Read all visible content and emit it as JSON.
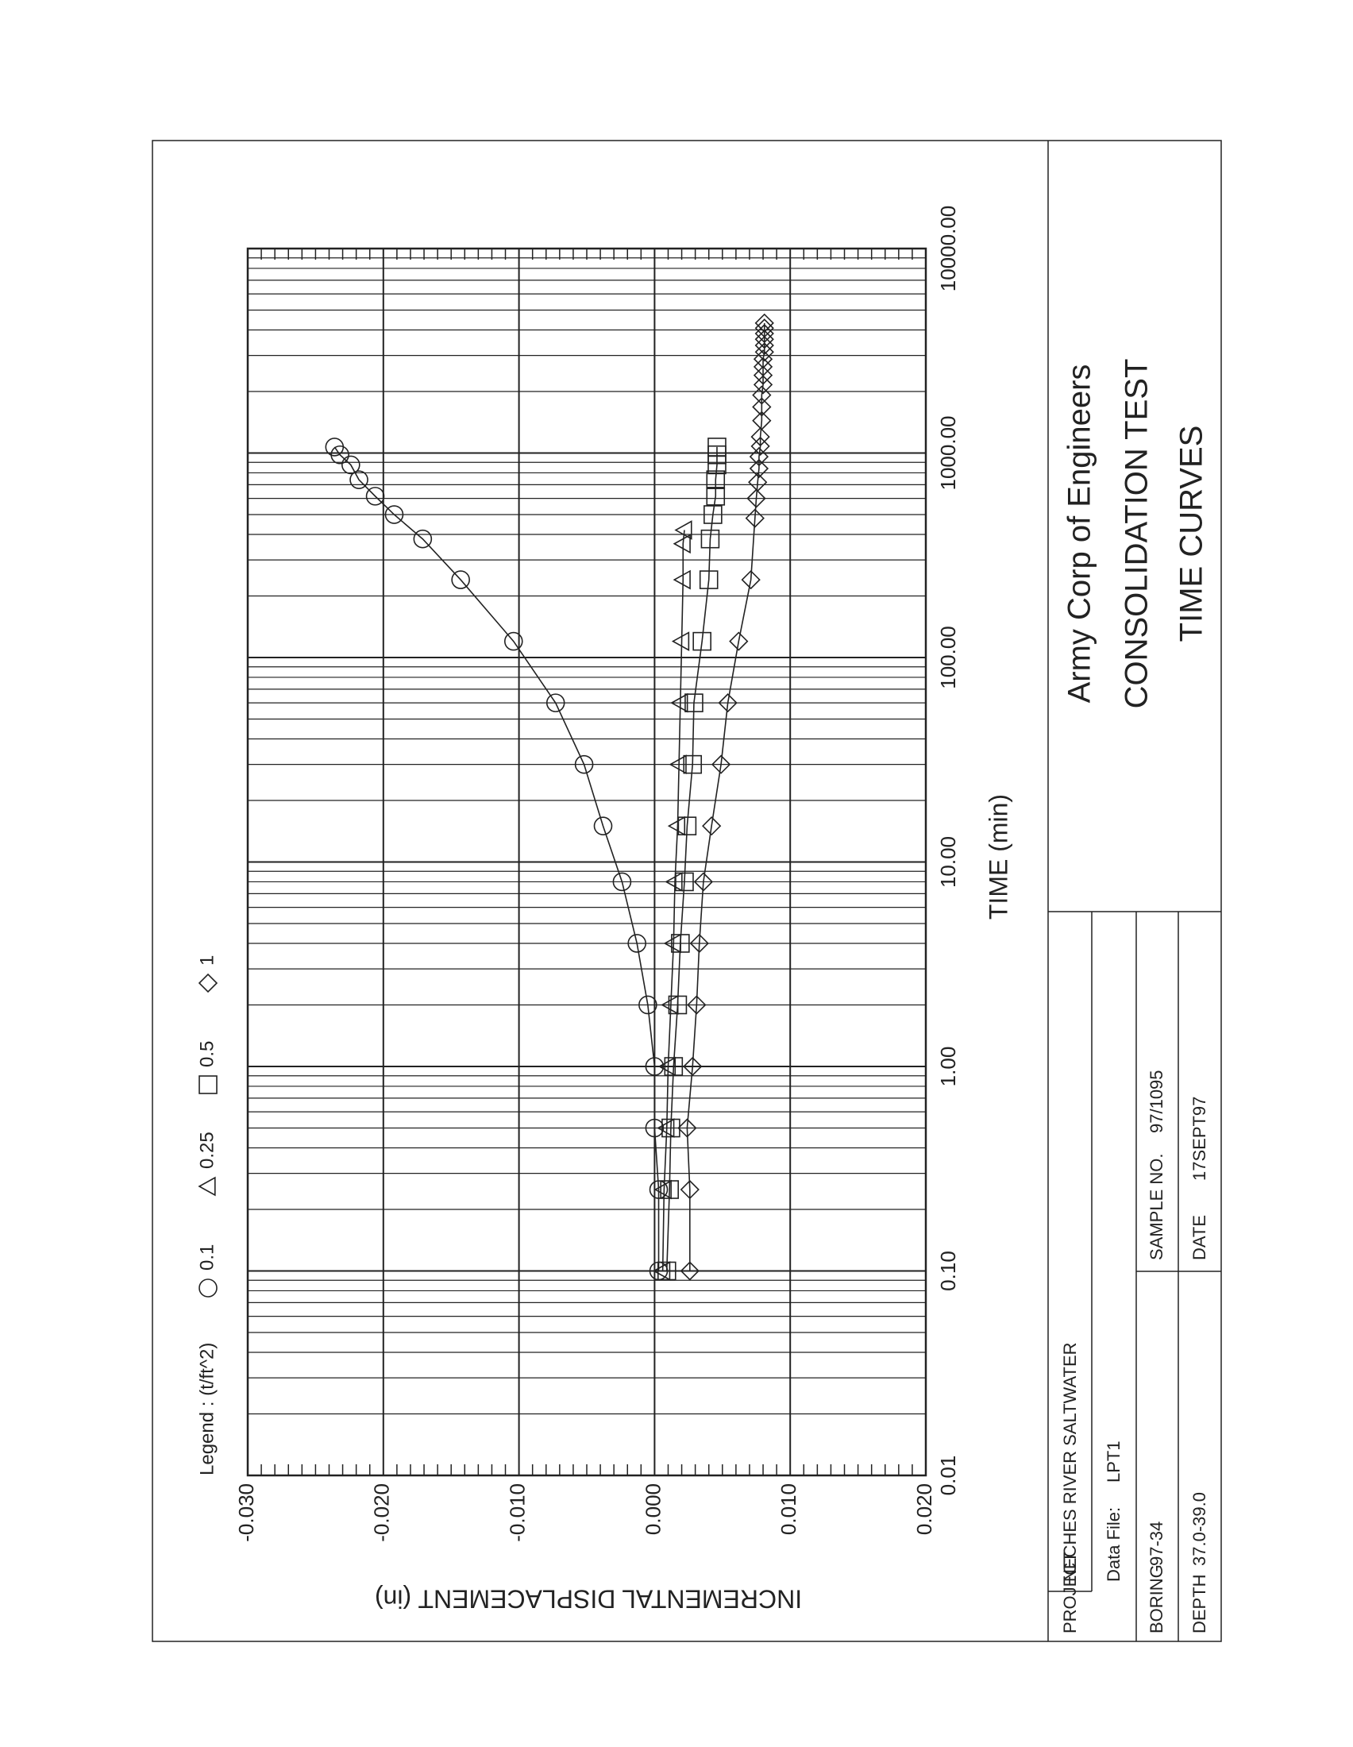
{
  "chart_data": {
    "type": "line",
    "xlabel": "TIME (min)",
    "ylabel": "INCREMENTAL DISPLACEMENT (in)",
    "legend_title": "Legend : (t/ft^2)",
    "xscale": "log",
    "xlim": [
      0.01,
      10000
    ],
    "xticks": [
      {
        "value": 0.01,
        "label": "0.01"
      },
      {
        "value": 0.1,
        "label": "0.10"
      },
      {
        "value": 1,
        "label": "1.00"
      },
      {
        "value": 10,
        "label": "10.00"
      },
      {
        "value": 100,
        "label": "100.00"
      },
      {
        "value": 1000,
        "label": "1000.00"
      },
      {
        "value": 10000,
        "label": "10000.00"
      }
    ],
    "ylim": [
      0.02,
      -0.03
    ],
    "yticks": [
      {
        "value": -0.03,
        "label": "-0.030"
      },
      {
        "value": -0.02,
        "label": "-0.020"
      },
      {
        "value": -0.01,
        "label": "-0.010"
      },
      {
        "value": 0,
        "label": "0.000"
      },
      {
        "value": 0.01,
        "label": "0.010"
      },
      {
        "value": 0.02,
        "label": "0.020"
      }
    ],
    "grid": true,
    "series": [
      {
        "name": "0.1",
        "marker": "circle",
        "color": "#222222",
        "x": [
          0.1,
          0.25,
          0.5,
          1,
          2,
          4,
          8,
          15,
          30,
          60,
          120,
          240,
          380,
          500,
          615,
          740,
          875,
          980,
          1070
        ],
        "values": [
          0.0003,
          0.0003,
          0,
          0,
          -0.0005,
          -0.0013,
          -0.0024,
          -0.0038,
          -0.0052,
          -0.0073,
          -0.0104,
          -0.0143,
          -0.0171,
          -0.0192,
          -0.0206,
          -0.0218,
          -0.0224,
          -0.0232,
          -0.0236
        ]
      },
      {
        "name": "0.25",
        "marker": "triangle",
        "color": "#222222",
        "x": [
          0.1,
          0.25,
          0.5,
          1,
          2,
          4,
          8,
          15,
          30,
          60,
          120,
          240,
          360,
          420
        ],
        "values": [
          0.0006,
          0.0007,
          0.0009,
          0.001,
          0.0012,
          0.0014,
          0.0015,
          0.0017,
          0.0018,
          0.0019,
          0.002,
          0.0021,
          0.0021,
          0.0022
        ]
      },
      {
        "name": "0.5",
        "marker": "square",
        "color": "#222222",
        "x": [
          0.1,
          0.25,
          0.5,
          1,
          2,
          4,
          8,
          15,
          30,
          60,
          120,
          240,
          380,
          500,
          615,
          740,
          875,
          980,
          1070
        ],
        "values": [
          0.0009,
          0.0011,
          0.0012,
          0.0014,
          0.0017,
          0.0019,
          0.0022,
          0.0024,
          0.0028,
          0.0029,
          0.0035,
          0.004,
          0.0041,
          0.0043,
          0.0045,
          0.0045,
          0.0046,
          0.0046,
          0.0046
        ]
      },
      {
        "name": "1",
        "marker": "diamond",
        "color": "#222222",
        "x": [
          0.1,
          0.25,
          0.5,
          1,
          2,
          4,
          8,
          15,
          30,
          60,
          120,
          240,
          480,
          600,
          720,
          840,
          960,
          1080,
          1200,
          1440,
          1680,
          1920,
          2160,
          2400,
          2640,
          2880,
          3120,
          3360,
          3600,
          3840,
          4080,
          4320
        ],
        "values": [
          0.0026,
          0.0026,
          0.0024,
          0.0028,
          0.0031,
          0.0033,
          0.0036,
          0.0042,
          0.0049,
          0.0054,
          0.0062,
          0.0071,
          0.0074,
          0.0075,
          0.0076,
          0.0077,
          0.0077,
          0.0078,
          0.0078,
          0.0079,
          0.0079,
          0.0079,
          0.008,
          0.008,
          0.008,
          0.008,
          0.0081,
          0.0081,
          0.0081,
          0.0081,
          0.0081,
          0.0081
        ]
      }
    ]
  },
  "title_block": {
    "org": "Army Corp of Engineers",
    "test": "CONSOLIDATION TEST",
    "subtitle": "TIME CURVES",
    "project_label": "PROJECT",
    "project": "NECHES RIVER SALTWATER",
    "data_file_label": "Data File:",
    "data_file": "LPT1",
    "boring_label": "BORING",
    "boring": "97-34",
    "sample_label": "SAMPLE NO.",
    "sample": "97/1095",
    "depth_label": "DEPTH",
    "depth": "37.0-39.0",
    "date_label": "DATE",
    "date": "17SEPT97"
  }
}
